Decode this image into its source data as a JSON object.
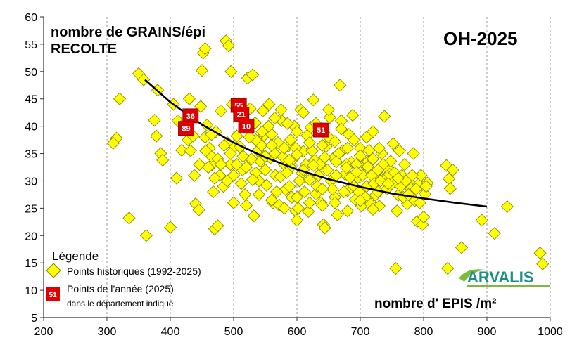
{
  "chart_data": {
    "type": "scatter",
    "title": "nombre de GRAINS/épi",
    "subtitle": "RECOLTE",
    "badge": "OH-2025",
    "xlabel": "nombre d' EPIS /m²",
    "ylabel": "",
    "xlim": [
      200,
      1000
    ],
    "ylim": [
      5,
      60
    ],
    "x_ticks": [
      200,
      300,
      400,
      500,
      600,
      700,
      800,
      900,
      1000
    ],
    "y_ticks": [
      5,
      10,
      15,
      20,
      25,
      30,
      35,
      40,
      45,
      50,
      55,
      60
    ],
    "grid": "vertical dashed",
    "legend": {
      "placement": "bottom-left",
      "title": "Légende",
      "historic_label": "Points historiques (1992-2025)",
      "current_label_line1": "Points de l’année (2025)",
      "current_label_line2": "dans le département indiqué",
      "current_sample_code": "51"
    },
    "colors": {
      "historic_fill": "#FFFF00",
      "historic_stroke": "#8A8A00",
      "current_fill": "#E00000",
      "current_text": "#FFFFFF",
      "trend_line": "#000000",
      "badge_text": "#E00000",
      "logo_teal": "#1B8E8A",
      "logo_green": "#7DBA3B"
    },
    "series": [
      {
        "name": "Points historiques (1992-2025)",
        "marker": "diamond",
        "points": [
          [
            350,
            49.6
          ],
          [
            358,
            48.5
          ],
          [
            320,
            45
          ],
          [
            315,
            37.8
          ],
          [
            310,
            36.9
          ],
          [
            335,
            23.2
          ],
          [
            362,
            20
          ],
          [
            375,
            41.1
          ],
          [
            380,
            46.6
          ],
          [
            385,
            35
          ],
          [
            388,
            33.8
          ],
          [
            378,
            38.2
          ],
          [
            400,
            21.5
          ],
          [
            405,
            44
          ],
          [
            410,
            30.5
          ],
          [
            412,
            41
          ],
          [
            418,
            35.6
          ],
          [
            422,
            40.5
          ],
          [
            430,
            45
          ],
          [
            432,
            35.5
          ],
          [
            428,
            37.5
          ],
          [
            436,
            38.2
          ],
          [
            440,
            25.8
          ],
          [
            445,
            24.7
          ],
          [
            448,
            43.6
          ],
          [
            450,
            50.2
          ],
          [
            452,
            53.4
          ],
          [
            455,
            54.2
          ],
          [
            458,
            40.2
          ],
          [
            462,
            36
          ],
          [
            466,
            33
          ],
          [
            470,
            21.2
          ],
          [
            472,
            39
          ],
          [
            475,
            21.8
          ],
          [
            480,
            42.8
          ],
          [
            484,
            29
          ],
          [
            488,
            55.6
          ],
          [
            492,
            54.7
          ],
          [
            496,
            50
          ],
          [
            498,
            44
          ],
          [
            500,
            26
          ],
          [
            502,
            36.3
          ],
          [
            505,
            38.2
          ],
          [
            508,
            43
          ],
          [
            512,
            42
          ],
          [
            514,
            32
          ],
          [
            518,
            27.5
          ],
          [
            520,
            25.5
          ],
          [
            522,
            48.8
          ],
          [
            526,
            43.2
          ],
          [
            530,
            49.4
          ],
          [
            532,
            23.6
          ],
          [
            534,
            40.6
          ],
          [
            538,
            35.5
          ],
          [
            540,
            30
          ],
          [
            542,
            33.6
          ],
          [
            546,
            42.8
          ],
          [
            548,
            38.3
          ],
          [
            552,
            29.2
          ],
          [
            556,
            44
          ],
          [
            558,
            34.2
          ],
          [
            562,
            26
          ],
          [
            566,
            31
          ],
          [
            570,
            37
          ],
          [
            572,
            25.6
          ],
          [
            576,
            41
          ],
          [
            580,
            33
          ],
          [
            582,
            28.4
          ],
          [
            586,
            36.3
          ],
          [
            590,
            32.5
          ],
          [
            592,
            27
          ],
          [
            596,
            40
          ],
          [
            598,
            24.5
          ],
          [
            600,
            22.8
          ],
          [
            602,
            25
          ],
          [
            606,
            43
          ],
          [
            608,
            31.4
          ],
          [
            610,
            35.4
          ],
          [
            612,
            28
          ],
          [
            616,
            38.3
          ],
          [
            618,
            24.4
          ],
          [
            622,
            39.8
          ],
          [
            626,
            44.8
          ],
          [
            628,
            33.8
          ],
          [
            630,
            27.6
          ],
          [
            634,
            31
          ],
          [
            638,
            26
          ],
          [
            640,
            25.5
          ],
          [
            642,
            22
          ],
          [
            644,
            21.4
          ],
          [
            646,
            36.3
          ],
          [
            650,
            38
          ],
          [
            652,
            41.6
          ],
          [
            654,
            30
          ],
          [
            658,
            34.2
          ],
          [
            660,
            27
          ],
          [
            664,
            23.8
          ],
          [
            668,
            47.5
          ],
          [
            670,
            41
          ],
          [
            672,
            35.5
          ],
          [
            676,
            31.2
          ],
          [
            680,
            28.2
          ],
          [
            682,
            38.5
          ],
          [
            686,
            33.4
          ],
          [
            688,
            42
          ],
          [
            692,
            26.6
          ],
          [
            696,
            30.6
          ],
          [
            700,
            36
          ],
          [
            702,
            25.4
          ],
          [
            706,
            33
          ],
          [
            710,
            29
          ],
          [
            714,
            35.6
          ],
          [
            716,
            25.8
          ],
          [
            720,
            39
          ],
          [
            724,
            27.4
          ],
          [
            726,
            31.6
          ],
          [
            730,
            25.4
          ],
          [
            734,
            35
          ],
          [
            738,
            41.8
          ],
          [
            740,
            30.6
          ],
          [
            744,
            32.2
          ],
          [
            748,
            33.6
          ],
          [
            752,
            36.8
          ],
          [
            756,
            14
          ],
          [
            758,
            24.5
          ],
          [
            760,
            27.4
          ],
          [
            762,
            35.5
          ],
          [
            766,
            31
          ],
          [
            770,
            33
          ],
          [
            774,
            25.8
          ],
          [
            778,
            29.8
          ],
          [
            780,
            28.6
          ],
          [
            784,
            35
          ],
          [
            786,
            26.4
          ],
          [
            790,
            22.6
          ],
          [
            792,
            29.4
          ],
          [
            796,
            31
          ],
          [
            798,
            22
          ],
          [
            800,
            23.4
          ],
          [
            802,
            27.6
          ],
          [
            806,
            29.6
          ],
          [
            836,
            32.8
          ],
          [
            840,
            30.4
          ],
          [
            842,
            28.6
          ],
          [
            846,
            32
          ],
          [
            838,
            14
          ],
          [
            860,
            17.8
          ],
          [
            892,
            22.8
          ],
          [
            912,
            20.4
          ],
          [
            932,
            25.3
          ],
          [
            984,
            16.8
          ],
          [
            988,
            14.8
          ],
          [
            455,
            38
          ],
          [
            465,
            34.5
          ],
          [
            478,
            31
          ],
          [
            490,
            37
          ],
          [
            495,
            33
          ],
          [
            510,
            36.2
          ],
          [
            528,
            34
          ],
          [
            535,
            31.5
          ],
          [
            544,
            36.5
          ],
          [
            550,
            32
          ],
          [
            560,
            38.5
          ],
          [
            565,
            35
          ],
          [
            568,
            28
          ],
          [
            574,
            30.8
          ],
          [
            578,
            34.4
          ],
          [
            584,
            31.5
          ],
          [
            588,
            29
          ],
          [
            594,
            34
          ],
          [
            604,
            30
          ],
          [
            614,
            33
          ],
          [
            620,
            30.2
          ],
          [
            624,
            35.5
          ],
          [
            632,
            29
          ],
          [
            636,
            33
          ],
          [
            648,
            32
          ],
          [
            656,
            28.5
          ],
          [
            662,
            31
          ],
          [
            666,
            35
          ],
          [
            674,
            28
          ],
          [
            678,
            33
          ],
          [
            684,
            30.6
          ],
          [
            690,
            29
          ],
          [
            694,
            33
          ],
          [
            698,
            28
          ],
          [
            704,
            31
          ],
          [
            708,
            27
          ],
          [
            712,
            33.5
          ],
          [
            718,
            31
          ],
          [
            722,
            29.5
          ],
          [
            728,
            28
          ],
          [
            732,
            30
          ],
          [
            736,
            33
          ],
          [
            742,
            28.5
          ],
          [
            746,
            31.2
          ],
          [
            750,
            29.5
          ],
          [
            754,
            31.5
          ],
          [
            764,
            29
          ],
          [
            768,
            27
          ],
          [
            772,
            30
          ],
          [
            776,
            27.5
          ],
          [
            782,
            31
          ],
          [
            788,
            28.5
          ],
          [
            794,
            26
          ],
          [
            804,
            29
          ],
          [
            598,
            36
          ],
          [
            585,
            40.5
          ],
          [
            575,
            43
          ],
          [
            565,
            41.5
          ],
          [
            555,
            40
          ],
          [
            545,
            39
          ],
          [
            535,
            37.5
          ],
          [
            525,
            38
          ],
          [
            515,
            34.5
          ],
          [
            505,
            33
          ],
          [
            495,
            35
          ],
          [
            485,
            36.5
          ],
          [
            475,
            34
          ],
          [
            465,
            38.5
          ],
          [
            456,
            35.5
          ],
          [
            446,
            33
          ],
          [
            438,
            31
          ],
          [
            468,
            28
          ],
          [
            540,
            27.5
          ],
          [
            560,
            26.5
          ],
          [
            580,
            25
          ],
          [
            600,
            27
          ],
          [
            620,
            26
          ],
          [
            640,
            28.5
          ],
          [
            660,
            26
          ],
          [
            680,
            24.5
          ],
          [
            700,
            26.4
          ],
          [
            720,
            24.8
          ],
          [
            610,
            42.5
          ],
          [
            630,
            40.5
          ],
          [
            650,
            43
          ],
          [
            670,
            39.5
          ],
          [
            690,
            37.5
          ],
          [
            710,
            38
          ],
          [
            730,
            36
          ],
          [
            560,
            36.5
          ],
          [
            590,
            37.5
          ],
          [
            600,
            39
          ],
          [
            620,
            37
          ],
          [
            640,
            36.5
          ],
          [
            660,
            37.2
          ],
          [
            680,
            36
          ],
          [
            700,
            34.6
          ],
          [
            720,
            34
          ],
          [
            580,
            36
          ],
          [
            550,
            34.5
          ],
          [
            530,
            30.2
          ],
          [
            520,
            32.5
          ],
          [
            512,
            29.5
          ],
          [
            500,
            31
          ],
          [
            490,
            30
          ],
          [
            480,
            33
          ],
          [
            470,
            30.5
          ],
          [
            460,
            32.5
          ],
          [
            610,
            32
          ],
          [
            626,
            32.8
          ],
          [
            644,
            34.3
          ],
          [
            662,
            33.5
          ],
          [
            678,
            32.4
          ],
          [
            694,
            31.6
          ],
          [
            712,
            32.6
          ],
          [
            728,
            32
          ],
          [
            744,
            29.5
          ],
          [
            760,
            30.5
          ],
          [
            600,
            34.8
          ],
          [
            588,
            33.8
          ]
        ]
      },
      {
        "name": "Points de l’année (2025)",
        "marker": "square-labeled",
        "points": [
          {
            "x": 432,
            "y": 41.9,
            "label": "36"
          },
          {
            "x": 425,
            "y": 39.6,
            "label": "89"
          },
          {
            "x": 508,
            "y": 43.8,
            "label": "55"
          },
          {
            "x": 512,
            "y": 42.2,
            "label": "21"
          },
          {
            "x": 520,
            "y": 40.0,
            "label": "10"
          },
          {
            "x": 638,
            "y": 39.3,
            "label": "51"
          }
        ]
      }
    ],
    "trend": {
      "name": "courbe de tendance",
      "points": [
        [
          360,
          48.5
        ],
        [
          400,
          44.4
        ],
        [
          450,
          40.3
        ],
        [
          500,
          37.0
        ],
        [
          550,
          34.3
        ],
        [
          600,
          32.1
        ],
        [
          650,
          30.3
        ],
        [
          700,
          28.9
        ],
        [
          750,
          27.7
        ],
        [
          800,
          26.8
        ],
        [
          850,
          26.0
        ],
        [
          900,
          25.3
        ]
      ]
    }
  }
}
